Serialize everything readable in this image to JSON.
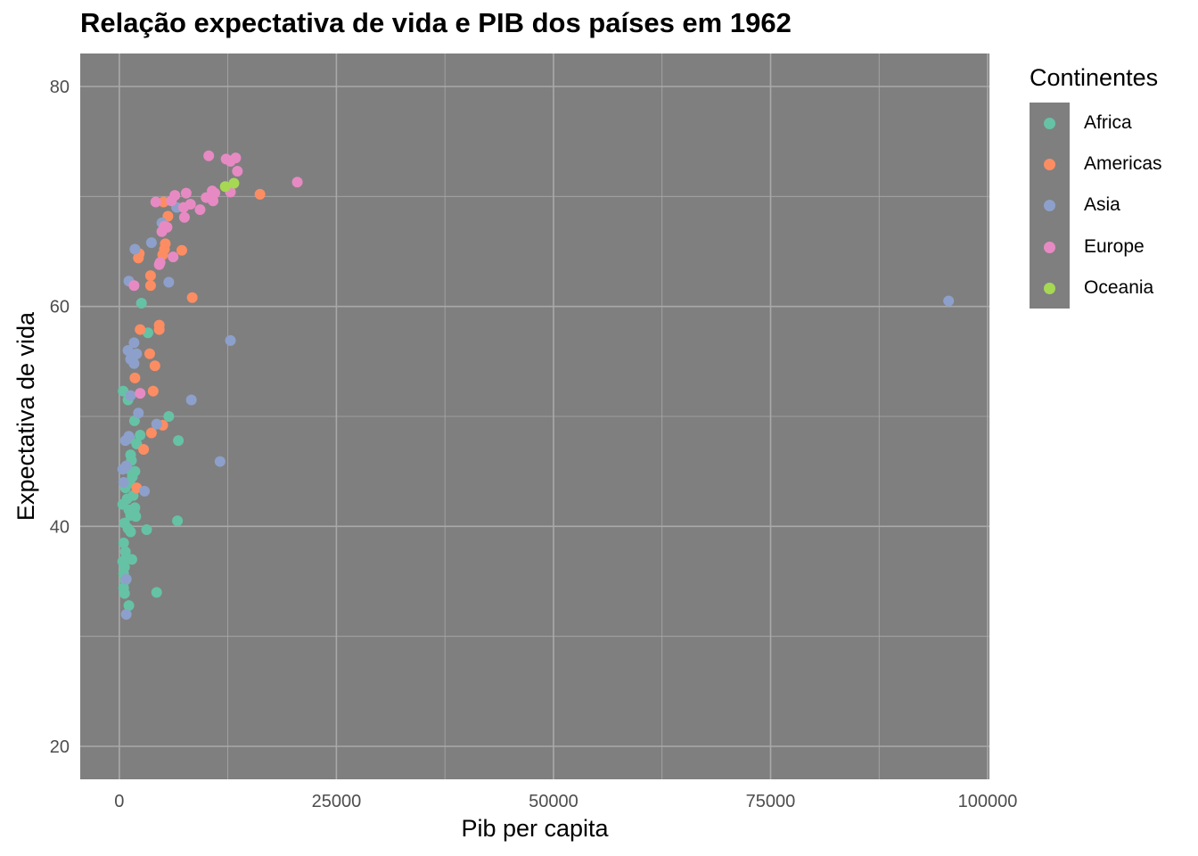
{
  "title": "Relação expectativa de vida e PIB dos países em 1962",
  "legend": {
    "title": "Continentes",
    "items": [
      {
        "label": "Africa",
        "color": "#66c2a5"
      },
      {
        "label": "Americas",
        "color": "#fc8d62"
      },
      {
        "label": "Asia",
        "color": "#8da0cb"
      },
      {
        "label": "Europe",
        "color": "#e78ac3"
      },
      {
        "label": "Oceania",
        "color": "#a6d854"
      }
    ]
  },
  "chart_data": {
    "type": "scatter",
    "title": "Relação expectativa de vida e PIB dos países em 1962",
    "xlabel": "Pib per capita",
    "ylabel": "Expectativa de vida",
    "xlim": [
      -4500,
      100200
    ],
    "ylim": [
      17,
      83
    ],
    "xticks": [
      0,
      25000,
      50000,
      75000,
      100000
    ],
    "xtick_labels": [
      "0",
      "25000",
      "50000",
      "75000",
      "100000"
    ],
    "yticks": [
      20,
      40,
      60,
      80
    ],
    "ytick_labels": [
      "20",
      "40",
      "60",
      "80"
    ],
    "grid": true,
    "panel_background": "#7f7f7f",
    "grid_color": "#a9a9a9",
    "legend_position": "right",
    "series": [
      {
        "name": "Africa",
        "color": "#66c2a5",
        "points": [
          [
            2550,
            60.3
          ],
          [
            5700,
            50.0
          ],
          [
            6800,
            47.8
          ],
          [
            1750,
            49.6
          ],
          [
            3150,
            39.7
          ],
          [
            6700,
            40.5
          ],
          [
            4300,
            34.0
          ],
          [
            1100,
            32.8
          ],
          [
            1450,
            37.0
          ],
          [
            3300,
            57.6
          ],
          [
            450,
            52.3
          ],
          [
            1000,
            51.5
          ],
          [
            1200,
            48.0
          ],
          [
            1300,
            46.5
          ],
          [
            1400,
            46.0
          ],
          [
            1800,
            45.0
          ],
          [
            1500,
            44.5
          ],
          [
            1200,
            44.0
          ],
          [
            700,
            43.5
          ],
          [
            400,
            42.0
          ],
          [
            900,
            42.5
          ],
          [
            1600,
            42.8
          ],
          [
            1100,
            41.5
          ],
          [
            1300,
            41.0
          ],
          [
            1700,
            41.3
          ],
          [
            1900,
            40.9
          ],
          [
            1800,
            41.7
          ],
          [
            600,
            40.3
          ],
          [
            1000,
            39.8
          ],
          [
            1300,
            39.5
          ],
          [
            500,
            38.5
          ],
          [
            700,
            37.7
          ],
          [
            800,
            37.2
          ],
          [
            400,
            36.8
          ],
          [
            600,
            36.3
          ],
          [
            500,
            35.7
          ],
          [
            700,
            35.1
          ],
          [
            500,
            34.4
          ],
          [
            600,
            33.9
          ],
          [
            2400,
            48.3
          ],
          [
            1500,
            44.8
          ],
          [
            900,
            45.3
          ],
          [
            2000,
            47.5
          ]
        ]
      },
      {
        "name": "Americas",
        "color": "#fc8d62",
        "points": [
          [
            16200,
            70.2
          ],
          [
            5100,
            69.5
          ],
          [
            5600,
            68.2
          ],
          [
            7200,
            65.1
          ],
          [
            5300,
            65.7
          ],
          [
            5200,
            65.2
          ],
          [
            5000,
            64.7
          ],
          [
            2200,
            64.4
          ],
          [
            3600,
            62.8
          ],
          [
            3600,
            61.9
          ],
          [
            8400,
            60.8
          ],
          [
            4600,
            58.3
          ],
          [
            4600,
            57.9
          ],
          [
            2400,
            57.9
          ],
          [
            3500,
            55.7
          ],
          [
            4100,
            54.6
          ],
          [
            1800,
            53.5
          ],
          [
            3900,
            52.3
          ],
          [
            5000,
            49.2
          ],
          [
            3700,
            48.5
          ],
          [
            2800,
            47.0
          ],
          [
            2000,
            43.5
          ],
          [
            2300,
            64.8
          ]
        ]
      },
      {
        "name": "Asia",
        "color": "#8da0cb",
        "points": [
          [
            95500,
            60.5
          ],
          [
            12800,
            56.9
          ],
          [
            8300,
            51.5
          ],
          [
            11600,
            45.9
          ],
          [
            5700,
            62.2
          ],
          [
            3700,
            65.8
          ],
          [
            4900,
            67.6
          ],
          [
            6600,
            69.0
          ],
          [
            1800,
            65.2
          ],
          [
            1100,
            62.3
          ],
          [
            1700,
            56.7
          ],
          [
            1000,
            56.0
          ],
          [
            1600,
            55.4
          ],
          [
            1700,
            54.8
          ],
          [
            2000,
            55.7
          ],
          [
            1300,
            55.2
          ],
          [
            4300,
            49.3
          ],
          [
            2200,
            50.3
          ],
          [
            1100,
            48.2
          ],
          [
            700,
            47.8
          ],
          [
            2900,
            43.2
          ],
          [
            500,
            44.0
          ],
          [
            800,
            35.2
          ],
          [
            800,
            32.0
          ],
          [
            400,
            45.2
          ],
          [
            800,
            45.5
          ],
          [
            1300,
            51.9
          ]
        ]
      },
      {
        "name": "Europe",
        "color": "#e78ac3",
        "points": [
          [
            20500,
            71.3
          ],
          [
            10300,
            73.7
          ],
          [
            12300,
            73.4
          ],
          [
            13400,
            73.5
          ],
          [
            12800,
            73.2
          ],
          [
            13600,
            72.3
          ],
          [
            12800,
            70.4
          ],
          [
            11000,
            70.3
          ],
          [
            10700,
            70.5
          ],
          [
            10800,
            69.6
          ],
          [
            9300,
            68.8
          ],
          [
            10000,
            69.9
          ],
          [
            8200,
            69.3
          ],
          [
            7700,
            70.3
          ],
          [
            7400,
            69.0
          ],
          [
            7500,
            68.1
          ],
          [
            6400,
            70.1
          ],
          [
            6000,
            69.6
          ],
          [
            5500,
            67.2
          ],
          [
            5200,
            67.3
          ],
          [
            4900,
            66.8
          ],
          [
            6200,
            64.5
          ],
          [
            4700,
            64.0
          ],
          [
            4600,
            63.8
          ],
          [
            4200,
            69.5
          ],
          [
            1700,
            61.9
          ],
          [
            2400,
            52.1
          ]
        ]
      },
      {
        "name": "Oceania",
        "color": "#a6d854",
        "points": [
          [
            12200,
            70.9
          ],
          [
            13200,
            71.2
          ]
        ]
      }
    ]
  }
}
